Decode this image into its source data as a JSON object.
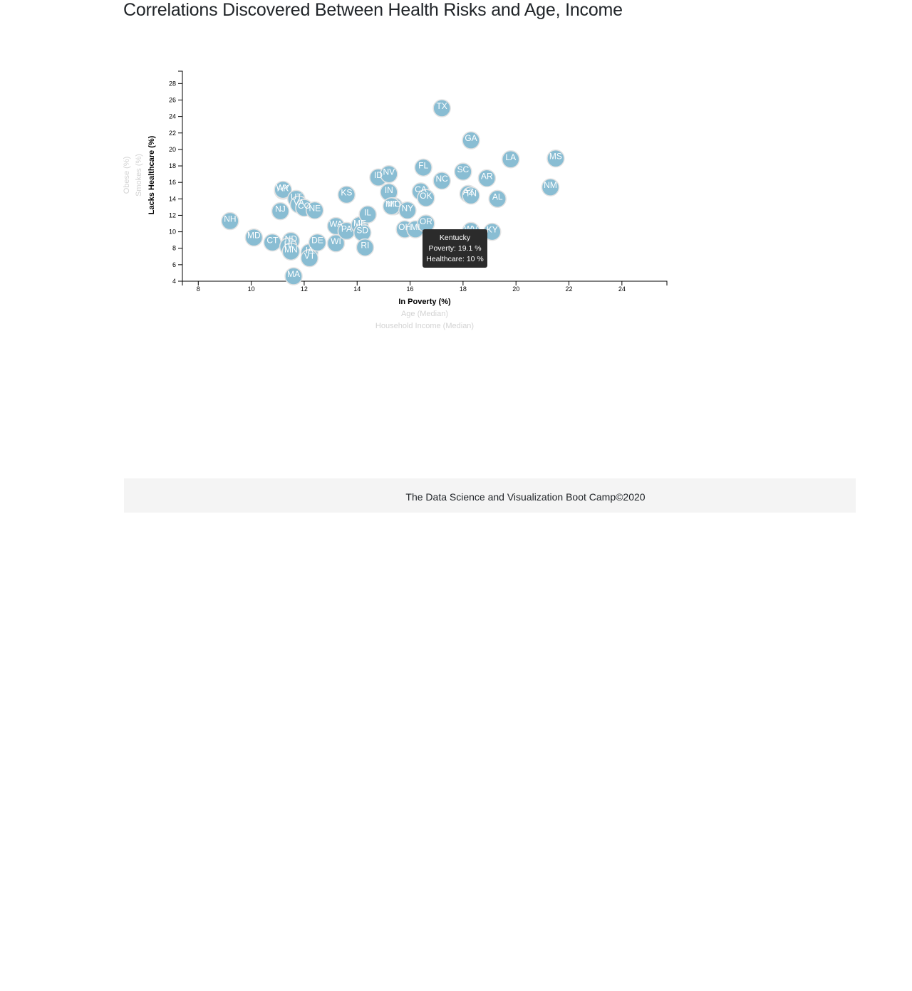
{
  "page": {
    "title": "Correlations Discovered Between Health Risks and Age, Income",
    "footer": "The Data Science and Visualization Boot Camp©2020"
  },
  "colors": {
    "circle": "#89bdd3",
    "circle_stroke": "#e3e3e3",
    "tooltip_bg": "#2b2b2b"
  },
  "chart_data": {
    "type": "scatter",
    "title": "",
    "xlabel": "In Poverty (%)",
    "ylabel": "Lacks Healthcare (%)",
    "xlabels_inactive": [
      "Age (Median)",
      "Household Income (Median)"
    ],
    "ylabels_inactive": [
      "Smokes (%)",
      "Obese (%)"
    ],
    "xlim": [
      7.4,
      25.7
    ],
    "ylim": [
      4,
      29.5
    ],
    "xticks": [
      8,
      10,
      12,
      14,
      16,
      18,
      20,
      22,
      24
    ],
    "yticks": [
      4,
      6,
      8,
      10,
      12,
      14,
      16,
      18,
      20,
      22,
      24,
      26,
      28
    ],
    "grid": false,
    "points": [
      {
        "abbr": "NH",
        "x": 9.2,
        "y": 11.3
      },
      {
        "abbr": "MD",
        "x": 10.1,
        "y": 9.3
      },
      {
        "abbr": "CT",
        "x": 10.8,
        "y": 8.7
      },
      {
        "abbr": "ND",
        "x": 11.5,
        "y": 8.9
      },
      {
        "abbr": "HI",
        "x": 11.4,
        "y": 8.2
      },
      {
        "abbr": "MN",
        "x": 11.5,
        "y": 7.6
      },
      {
        "abbr": "MA",
        "x": 11.6,
        "y": 4.6
      },
      {
        "abbr": "IA",
        "x": 12.2,
        "y": 7.5
      },
      {
        "abbr": "VT",
        "x": 12.2,
        "y": 6.8
      },
      {
        "abbr": "DE",
        "x": 12.5,
        "y": 8.7
      },
      {
        "abbr": "AK",
        "x": 11.2,
        "y": 15.0
      },
      {
        "abbr": "WY",
        "x": 11.2,
        "y": 15.1
      },
      {
        "abbr": "NJ",
        "x": 11.1,
        "y": 12.5
      },
      {
        "abbr": "UT",
        "x": 11.7,
        "y": 14.0
      },
      {
        "abbr": "VA",
        "x": 11.8,
        "y": 13.3
      },
      {
        "abbr": "CO",
        "x": 12.0,
        "y": 12.9
      },
      {
        "abbr": "NE",
        "x": 12.4,
        "y": 12.6
      },
      {
        "abbr": "WA",
        "x": 13.2,
        "y": 10.7
      },
      {
        "abbr": "WI",
        "x": 13.2,
        "y": 8.6
      },
      {
        "abbr": "PA",
        "x": 13.6,
        "y": 10.1
      },
      {
        "abbr": "KS",
        "x": 13.6,
        "y": 14.5
      },
      {
        "abbr": "ME",
        "x": 14.1,
        "y": 10.8
      },
      {
        "abbr": "SD",
        "x": 14.2,
        "y": 9.9
      },
      {
        "abbr": "RI",
        "x": 14.3,
        "y": 8.1
      },
      {
        "abbr": "IL",
        "x": 14.4,
        "y": 12.1
      },
      {
        "abbr": "ID",
        "x": 14.8,
        "y": 16.6
      },
      {
        "abbr": "NV",
        "x": 15.2,
        "y": 17.0
      },
      {
        "abbr": "IN",
        "x": 15.2,
        "y": 14.8
      },
      {
        "abbr": "MO",
        "x": 15.4,
        "y": 13.1
      },
      {
        "abbr": "MT",
        "x": 15.3,
        "y": 13.1
      },
      {
        "abbr": "NY",
        "x": 15.9,
        "y": 12.6
      },
      {
        "abbr": "OH",
        "x": 15.8,
        "y": 10.3
      },
      {
        "abbr": "MI",
        "x": 16.2,
        "y": 10.3
      },
      {
        "abbr": "CA",
        "x": 16.4,
        "y": 14.9
      },
      {
        "abbr": "OK",
        "x": 16.6,
        "y": 14.1
      },
      {
        "abbr": "OR",
        "x": 16.6,
        "y": 11.0
      },
      {
        "abbr": "FL",
        "x": 16.5,
        "y": 17.8
      },
      {
        "abbr": "NC",
        "x": 17.2,
        "y": 16.2
      },
      {
        "abbr": "TX",
        "x": 17.2,
        "y": 25.0
      },
      {
        "abbr": "SC",
        "x": 18.0,
        "y": 17.3
      },
      {
        "abbr": "AZ",
        "x": 18.2,
        "y": 14.6
      },
      {
        "abbr": "TN",
        "x": 18.3,
        "y": 14.4
      },
      {
        "abbr": "GA",
        "x": 18.3,
        "y": 21.1
      },
      {
        "abbr": "WV",
        "x": 18.3,
        "y": 10.1
      },
      {
        "abbr": "AR",
        "x": 18.9,
        "y": 16.5
      },
      {
        "abbr": "KY",
        "x": 19.1,
        "y": 10.0
      },
      {
        "abbr": "AL",
        "x": 19.3,
        "y": 14.0
      },
      {
        "abbr": "LA",
        "x": 19.8,
        "y": 18.8
      },
      {
        "abbr": "NM",
        "x": 21.3,
        "y": 15.4
      },
      {
        "abbr": "MS",
        "x": 21.5,
        "y": 18.9
      }
    ]
  },
  "tooltip": {
    "state": "Kentucky",
    "poverty_line": "Poverty: 19.1 %",
    "healthcare_line": "Healthcare: 10 %"
  }
}
